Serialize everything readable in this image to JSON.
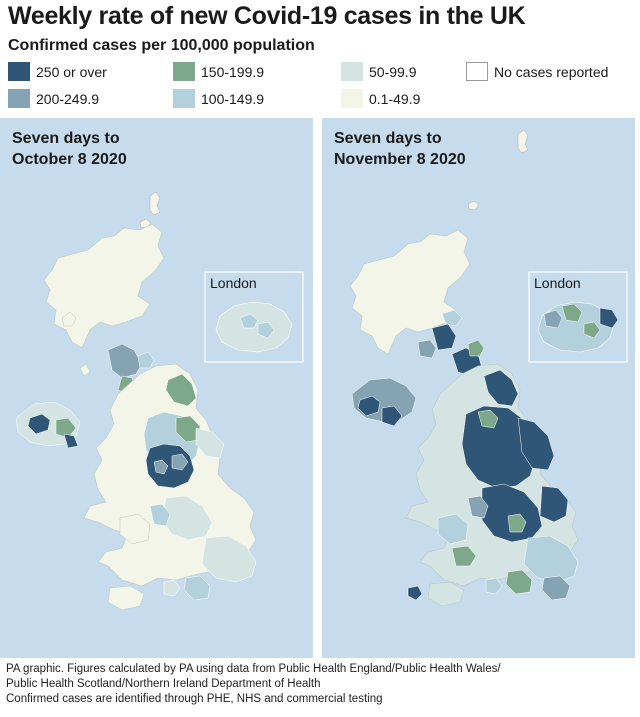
{
  "title": "Weekly rate of new Covid-19 cases in the UK",
  "subtitle": "Confirmed cases per 100,000 population",
  "legend": [
    {
      "label": "250 or over",
      "color": "#2f5677"
    },
    {
      "label": "200-249.9",
      "color": "#86a3b3"
    },
    {
      "label": "150-199.9",
      "color": "#7ea88a"
    },
    {
      "label": "100-149.9",
      "color": "#b3d1dd"
    },
    {
      "label": "50-99.9",
      "color": "#d3e4e3"
    },
    {
      "label": "0.1-49.9",
      "color": "#f4f5e9"
    },
    {
      "label": "No cases reported",
      "color": "#ffffff"
    }
  ],
  "maps": [
    {
      "title_line1": "Seven days to",
      "title_line2": "October 8 2020",
      "inset_label": "London"
    },
    {
      "title_line1": "Seven days to",
      "title_line2": "November 8 2020",
      "inset_label": "London"
    }
  ],
  "footer": {
    "line1": "PA graphic. Figures calculated by PA using data from Public Health England/Public Health Wales/",
    "line2": "Public Health Scotland/Northern Ireland Department of Health",
    "line3": "Confirmed cases are identified through PHE, NHS and commercial testing"
  }
}
